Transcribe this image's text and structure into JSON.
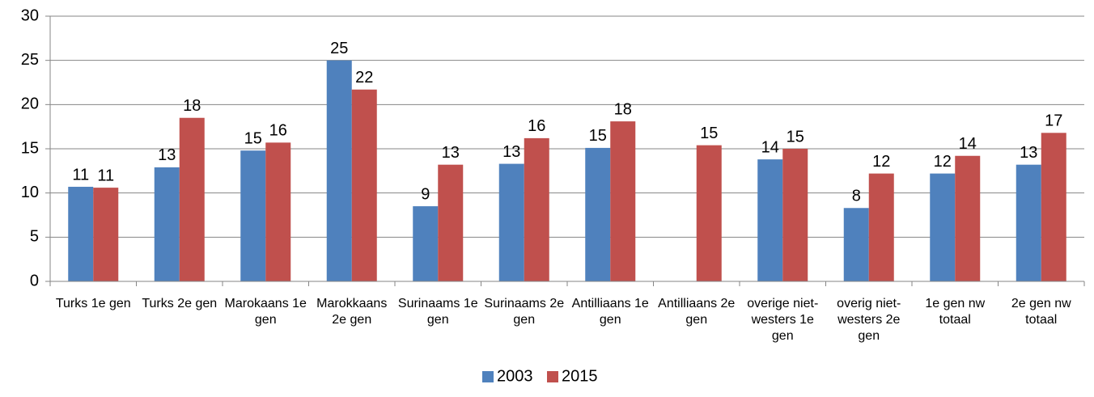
{
  "chart_data": {
    "type": "bar",
    "categories": [
      "Turks 1e gen",
      "Turks 2e gen",
      "Marokaans 1e gen",
      "Marokkaans 2e gen",
      "Surinaams 1e gen",
      "Surinaams 2e gen",
      "Antilliaans 1e gen",
      "Antilliaans 2e gen",
      "overige niet-westers 1e gen",
      "overig niet-westers 2e gen",
      "1e gen nw totaal",
      "2e gen nw totaal"
    ],
    "series": [
      {
        "name": "2003",
        "color": "#4f81bd",
        "values": [
          10.7,
          12.9,
          14.8,
          25,
          8.5,
          13.3,
          15.1,
          null,
          13.8,
          8.3,
          12.2,
          13.2
        ],
        "value_labels": [
          "11",
          "13",
          "15",
          "25",
          "9",
          "13",
          "15",
          null,
          "14",
          "8",
          "12",
          "13"
        ]
      },
      {
        "name": "2015",
        "color": "#c0504d",
        "values": [
          10.6,
          18.5,
          15.7,
          21.7,
          13.2,
          16.2,
          18.1,
          15.4,
          15,
          12.2,
          14.2,
          16.8
        ],
        "value_labels": [
          "11",
          "18",
          "16",
          "22",
          "13",
          "16",
          "18",
          "15",
          "15",
          "12",
          "14",
          "17"
        ]
      }
    ],
    "ylim": [
      0,
      30
    ],
    "yticks": [
      0,
      5,
      10,
      15,
      20,
      25,
      30
    ],
    "grid": true,
    "legend": "bottom"
  }
}
